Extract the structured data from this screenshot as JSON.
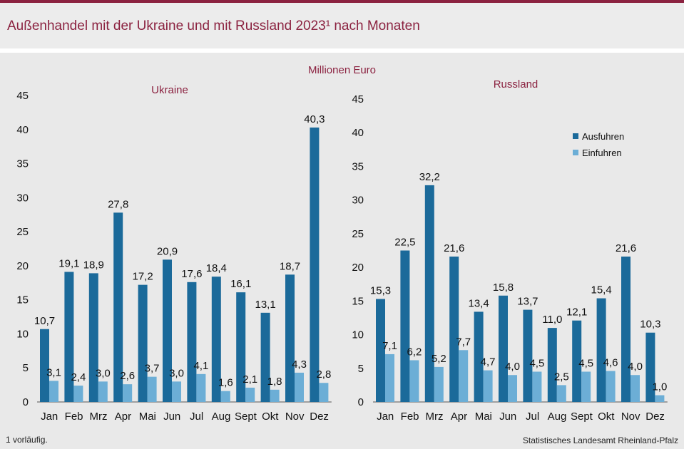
{
  "header": {
    "title": "Außenhandel mit der Ukraine und mit Russland 2023¹ nach Monaten",
    "unit": "Millionen Euro"
  },
  "footer": {
    "footnote": "1 vorläufig.",
    "source": "Statistisches Landesamt Rheinland-Pfalz"
  },
  "colors": {
    "exports": "#1b6a9a",
    "imports": "#6caed6",
    "accent": "#8b2240"
  },
  "chart_data": [
    {
      "type": "bar",
      "title": "Ukraine",
      "categories": [
        "Jan",
        "Feb",
        "Mrz",
        "Apr",
        "Mai",
        "Jun",
        "Jul",
        "Aug",
        "Sept",
        "Okt",
        "Nov",
        "Dez"
      ],
      "series": [
        {
          "name": "Ausfuhren",
          "values": [
            10.7,
            19.1,
            18.9,
            27.8,
            17.2,
            20.9,
            17.6,
            18.4,
            16.1,
            13.1,
            18.7,
            40.3
          ]
        },
        {
          "name": "Einfuhren",
          "values": [
            3.1,
            2.4,
            3.0,
            2.6,
            3.7,
            3.0,
            4.1,
            1.6,
            2.1,
            1.8,
            4.3,
            2.8
          ]
        }
      ],
      "ylim": [
        0,
        45
      ],
      "yticks": [
        0,
        5,
        10,
        15,
        20,
        25,
        30,
        35,
        40,
        45
      ],
      "ylabel": "Millionen Euro"
    },
    {
      "type": "bar",
      "title": "Russland",
      "categories": [
        "Jan",
        "Feb",
        "Mrz",
        "Apr",
        "Mai",
        "Jun",
        "Jul",
        "Aug",
        "Sept",
        "Okt",
        "Nov",
        "Dez"
      ],
      "series": [
        {
          "name": "Ausfuhren",
          "values": [
            15.3,
            22.5,
            32.2,
            21.6,
            13.4,
            15.8,
            13.7,
            11.0,
            12.1,
            15.4,
            21.6,
            10.3
          ]
        },
        {
          "name": "Einfuhren",
          "values": [
            7.1,
            6.2,
            5.2,
            7.7,
            4.7,
            4.0,
            4.5,
            2.5,
            4.5,
            4.6,
            4.0,
            1.0
          ]
        }
      ],
      "ylim": [
        0,
        45
      ],
      "yticks": [
        0,
        5,
        10,
        15,
        20,
        25,
        30,
        35,
        40,
        45
      ],
      "legend": [
        "Ausfuhren",
        "Einfuhren"
      ],
      "ylabel": "Millionen Euro"
    }
  ]
}
